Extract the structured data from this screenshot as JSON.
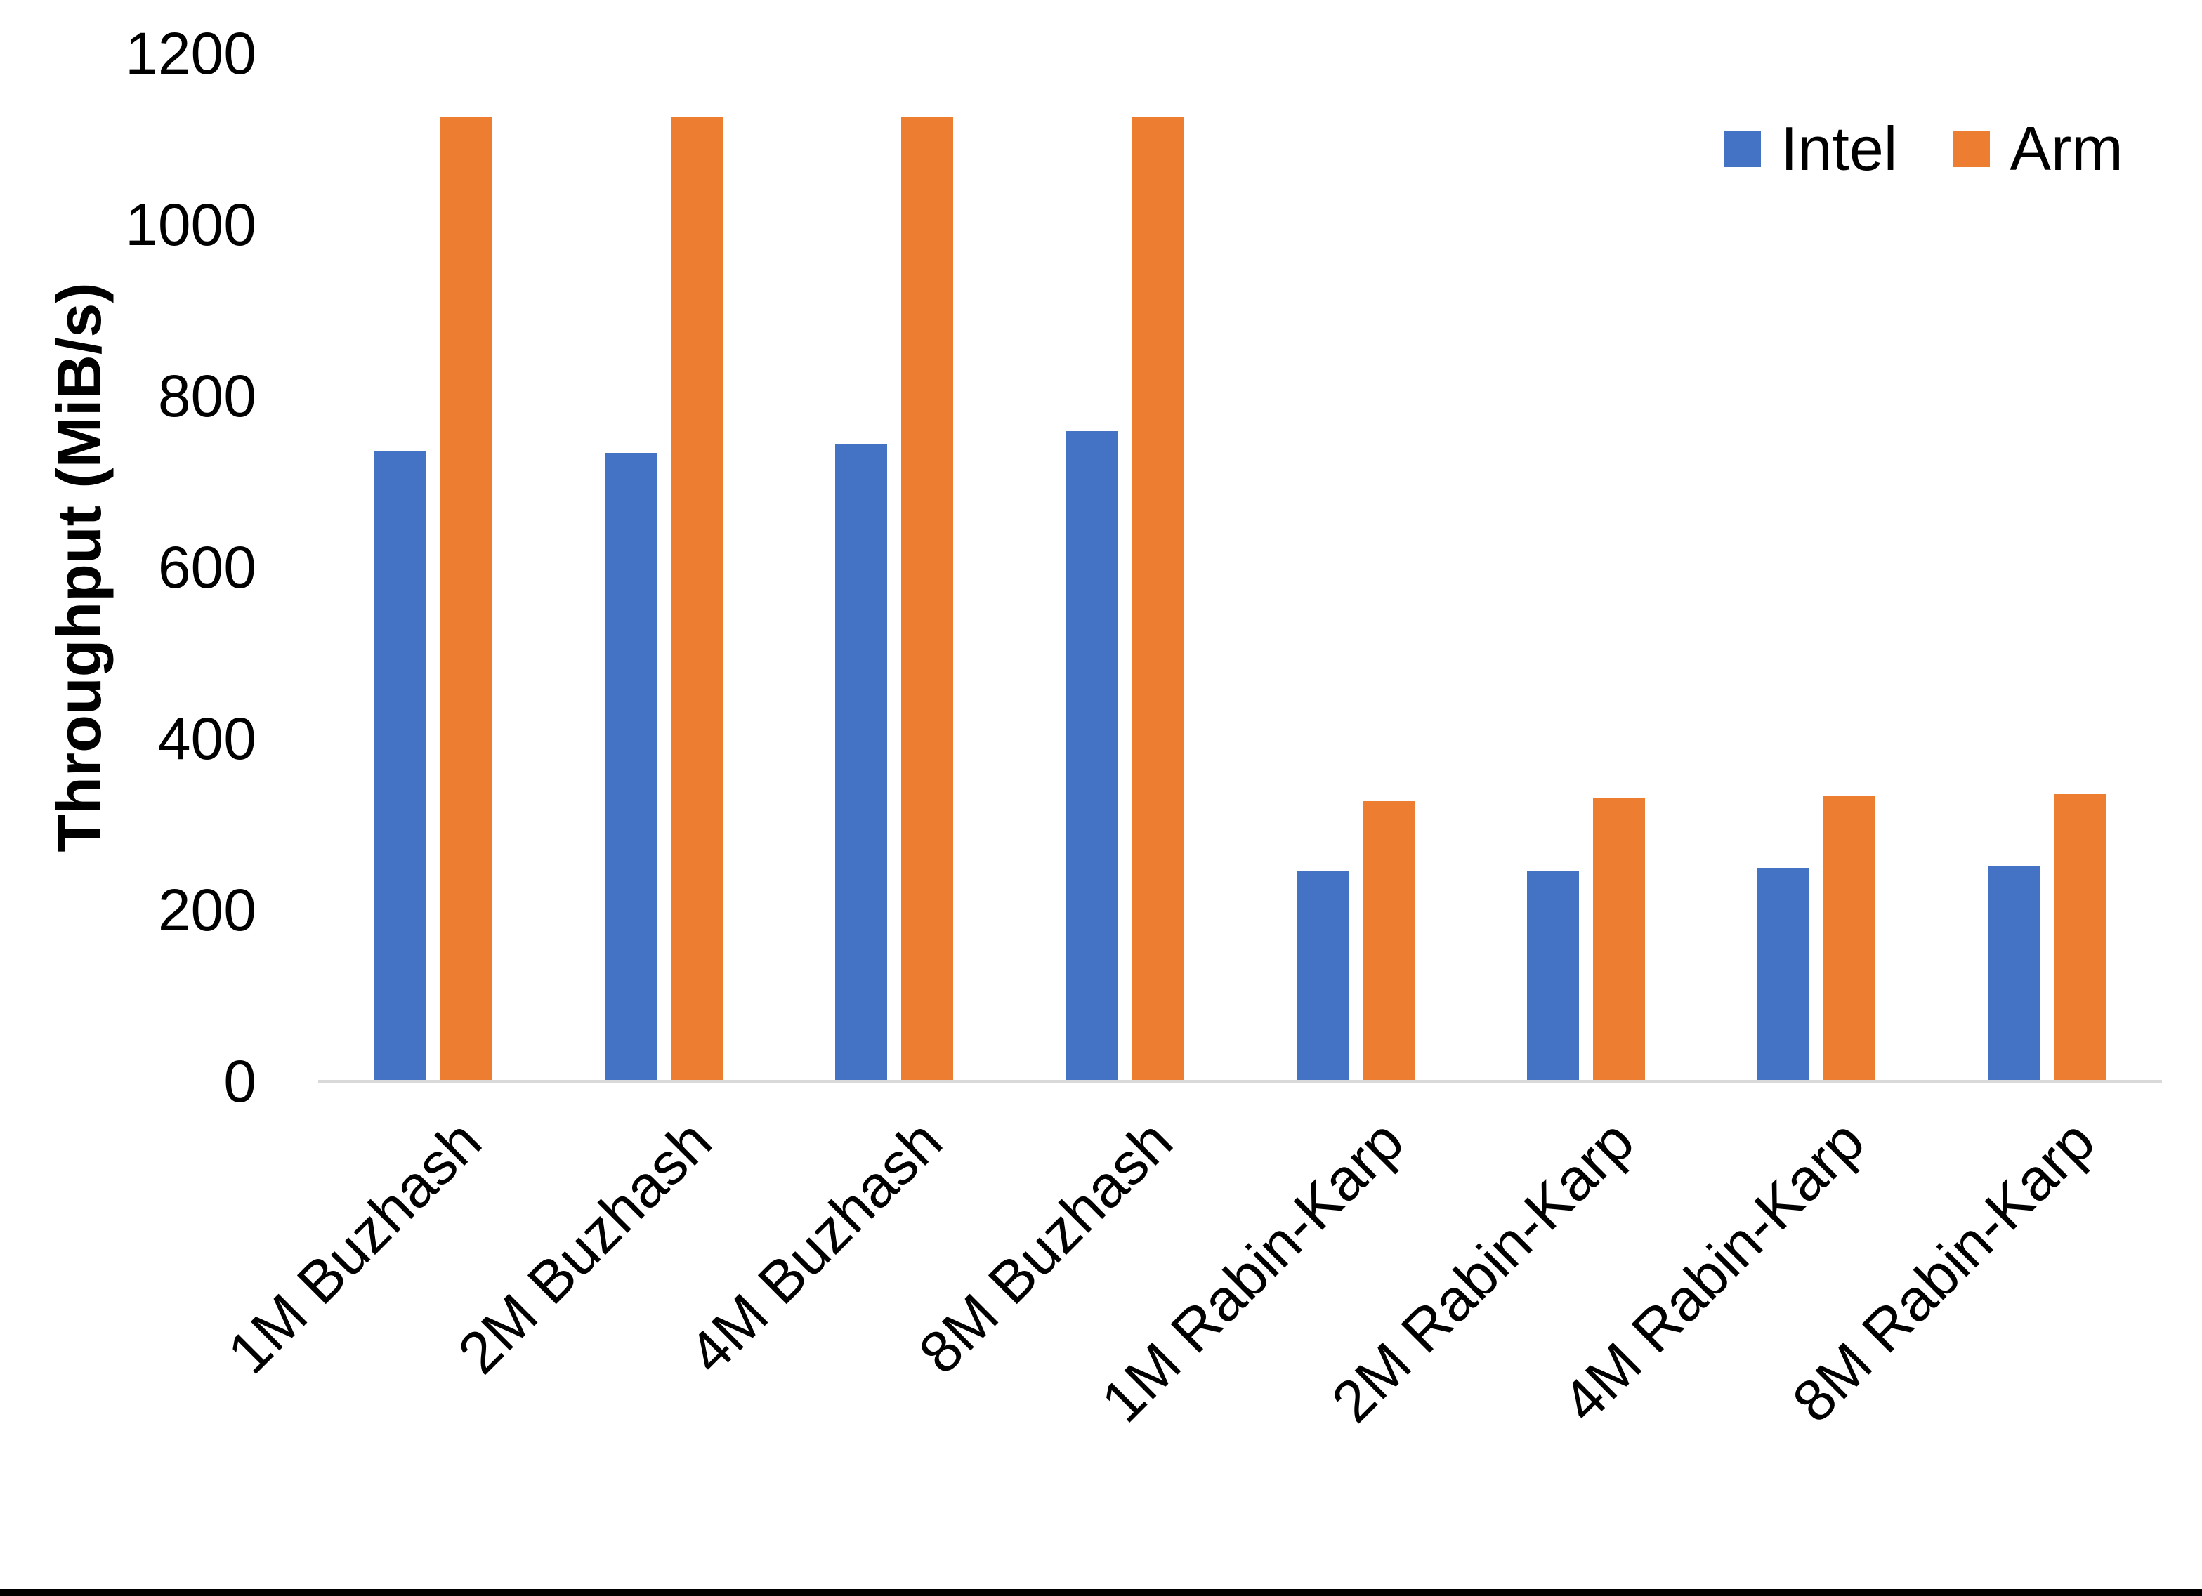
{
  "chart_data": {
    "type": "bar",
    "title": "",
    "categories": [
      "1M Buzhash",
      "2M Buzhash",
      "4M Buzhash",
      "8M Buzhash",
      "1M Rabin-Karp",
      "2M Rabin-Karp",
      "4M Rabin-Karp",
      "8M Rabin-Karp"
    ],
    "series": [
      {
        "name": "Intel",
        "color": "#4472C4",
        "values": [
          735,
          734,
          744,
          759,
          246,
          246,
          249,
          251
        ]
      },
      {
        "name": "Arm",
        "color": "#ED7D31",
        "values": [
          1125,
          1125,
          1125,
          1125,
          327,
          330,
          333,
          335
        ]
      }
    ],
    "xlabel": "",
    "ylabel": "Throughput (MiB/s)",
    "ylim": [
      0,
      1200
    ],
    "yticks": [
      0,
      200,
      400,
      600,
      800,
      1000,
      1200
    ],
    "grid": false,
    "legend_position": "top-right",
    "axis_line_color": "#D9D9D9"
  }
}
